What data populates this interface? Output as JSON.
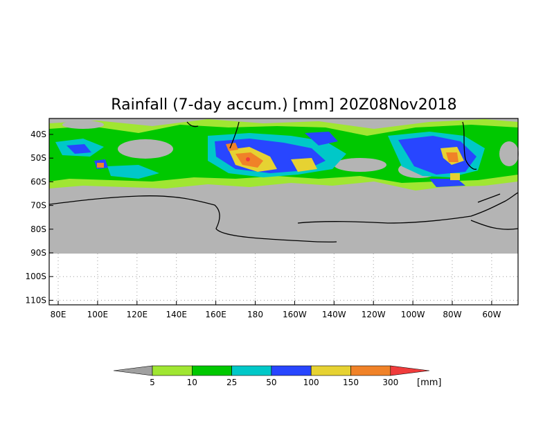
{
  "title": "Rainfall (7-day accum.) [mm] 20Z08Nov2018",
  "map": {
    "lat_labels": [
      "40S",
      "50S",
      "60S",
      "70S",
      "80S",
      "90S",
      "100S",
      "110S"
    ],
    "lon_labels": [
      "80E",
      "100E",
      "120E",
      "140E",
      "160E",
      "180",
      "160W",
      "140W",
      "120W",
      "100W",
      "80W",
      "60W"
    ],
    "land_color": "#b4b4b4",
    "background_color": "#ffffff",
    "gridlines": true
  },
  "legend": {
    "labels": [
      "5",
      "10",
      "25",
      "50",
      "100",
      "150",
      "300"
    ],
    "unit": "[mm]",
    "colors": {
      "below": "#a0a0a0",
      "bins": [
        "#a0e632",
        "#00c800",
        "#00c8c8",
        "#2846ff",
        "#e6d232",
        "#f08228"
      ],
      "above": "#f03c3c"
    }
  }
}
